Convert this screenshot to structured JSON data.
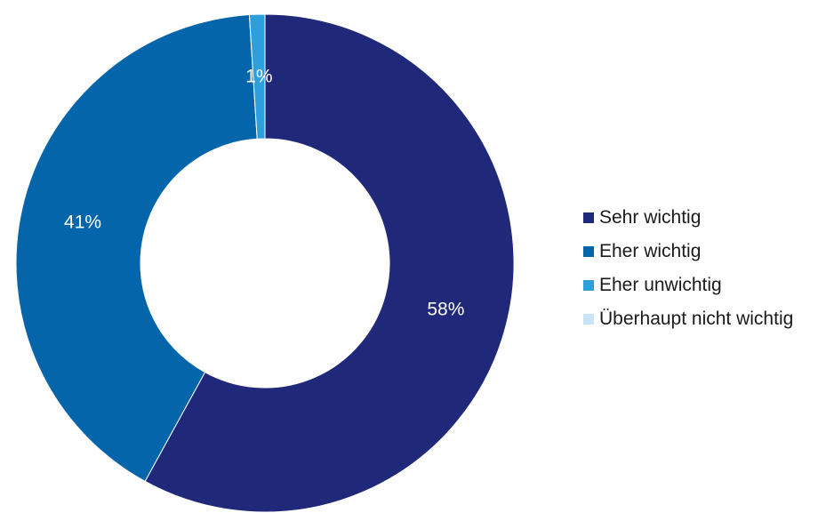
{
  "chart_data": {
    "type": "pie",
    "donut": true,
    "categories": [
      "Sehr wichtig",
      "Eher wichtig",
      "Eher unwichtig",
      "Überhaupt nicht wichtig"
    ],
    "values": [
      58,
      41,
      1,
      0
    ],
    "data_labels": [
      "58%",
      "41%",
      "1%",
      ""
    ],
    "colors": [
      "#20287a",
      "#0565ab",
      "#2d9fdb",
      "#c9e4f5"
    ],
    "label_color": "#ffffff",
    "legend_position": "right",
    "start_angle": "top",
    "direction": "clockwise"
  }
}
